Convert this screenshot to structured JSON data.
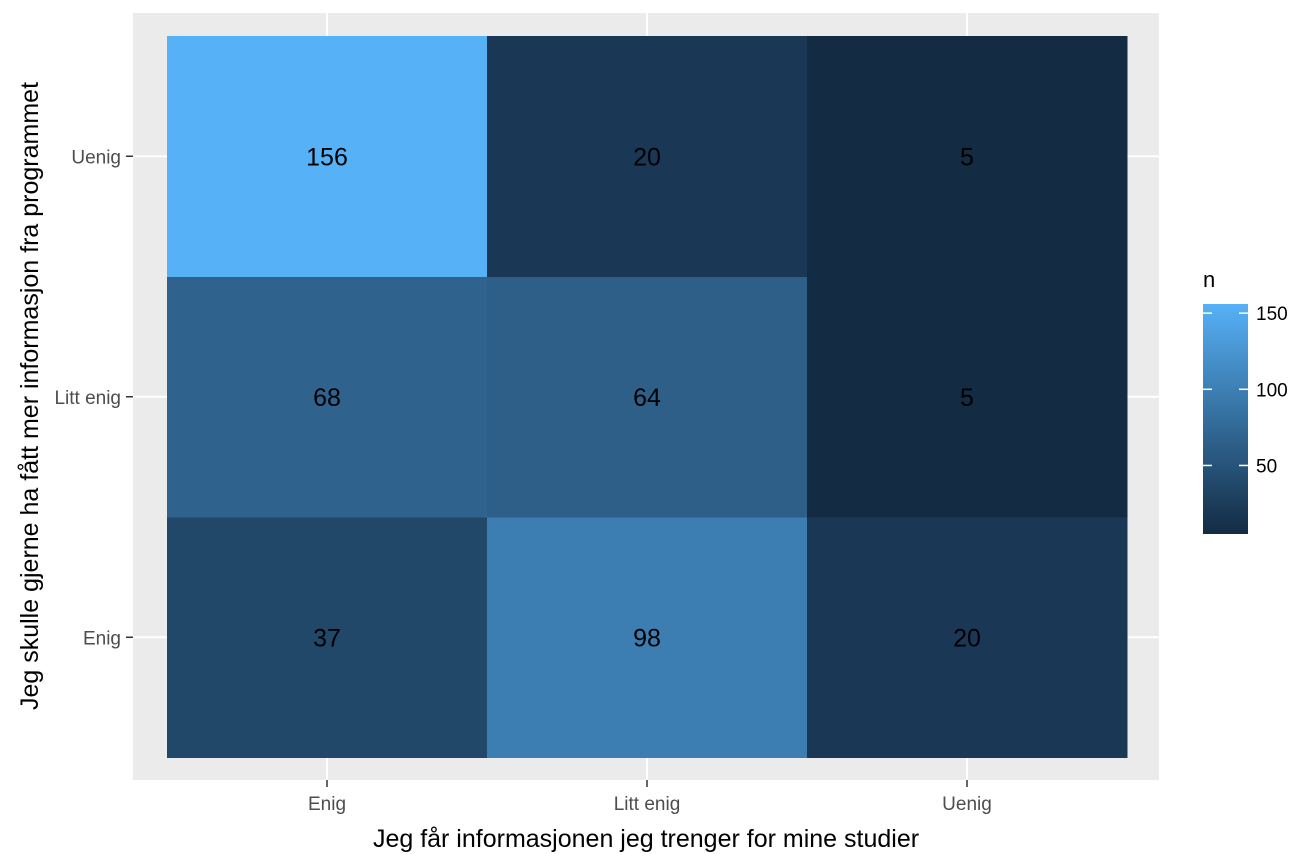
{
  "chart_data": {
    "type": "heatmap",
    "x_categories": [
      "Enig",
      "Litt enig",
      "Uenig"
    ],
    "y_categories": [
      "Enig",
      "Litt enig",
      "Uenig"
    ],
    "values": [
      [
        37,
        98,
        20
      ],
      [
        68,
        64,
        5
      ],
      [
        156,
        20,
        5
      ]
    ],
    "xlabel": "Jeg får informasjonen jeg trenger for mine studier",
    "ylabel": "Jeg skulle gjerne ha fått mer informasjon fra programmet",
    "legend": {
      "title": "n",
      "ticks": [
        50,
        100,
        150
      ],
      "range": [
        5,
        156
      ],
      "position": "right"
    },
    "colors": {
      "low": "#132B43",
      "high": "#56B1F7",
      "panel_background": "#EBEBEB",
      "grid": "#FFFFFF"
    },
    "grid": true
  }
}
